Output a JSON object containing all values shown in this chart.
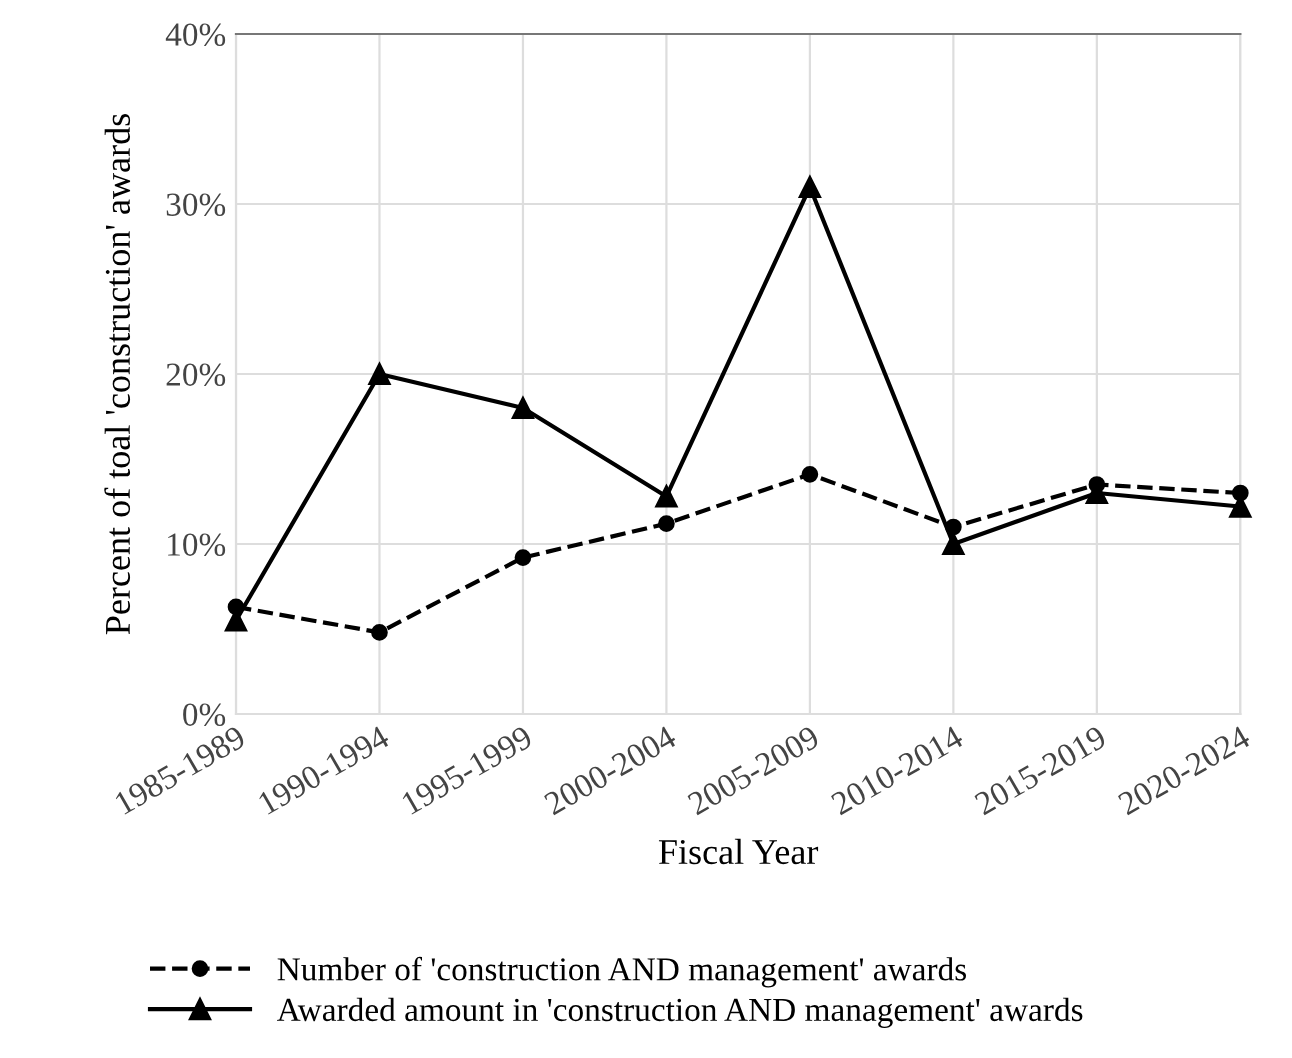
{
  "chart_data": {
    "type": "line",
    "xlabel": "Fiscal Year",
    "ylabel": "Percent of toal 'construction' awards",
    "categories": [
      "1985-1989",
      "1990-1994",
      "1995-1999",
      "2000-2004",
      "2005-2009",
      "2010-2014",
      "2015-2019",
      "2020-2024"
    ],
    "series": [
      {
        "name": "Number of 'construction AND management' awards",
        "color": "#000000",
        "marker": "circle",
        "line_style": "dashed",
        "values": [
          6.3,
          4.8,
          9.2,
          11.2,
          14.1,
          11.0,
          13.5,
          13.0
        ]
      },
      {
        "name": "Awarded amount in 'construction AND management' awards",
        "color": "#000000",
        "marker": "triangle",
        "line_style": "solid",
        "values": [
          5.5,
          20.0,
          18.0,
          12.8,
          31.0,
          10.0,
          13.0,
          12.2
        ]
      }
    ],
    "ylim": [
      0,
      40
    ],
    "yticks": [
      {
        "value": 0,
        "label": "0%"
      },
      {
        "value": 10,
        "label": "10%"
      },
      {
        "value": 20,
        "label": "20%"
      },
      {
        "value": 30,
        "label": "30%"
      },
      {
        "value": 40,
        "label": "40%"
      }
    ],
    "grid": true,
    "legend": "bottom"
  }
}
